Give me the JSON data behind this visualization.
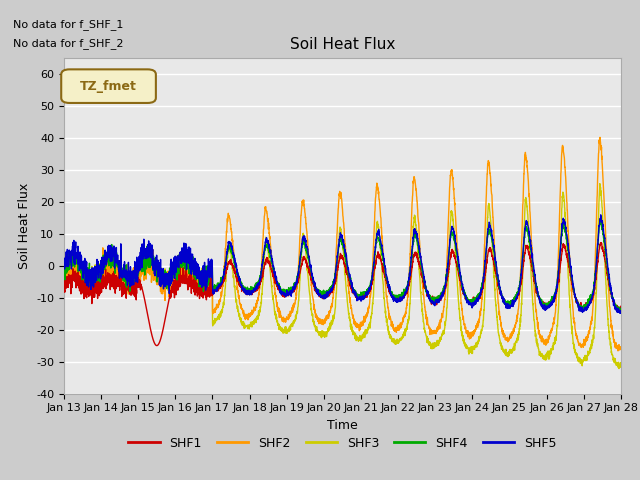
{
  "title": "Soil Heat Flux",
  "ylabel": "Soil Heat Flux",
  "xlabel": "Time",
  "ylim": [
    -40,
    65
  ],
  "xlim": [
    0,
    15
  ],
  "background_color": "#e8e8e8",
  "grid_color": "white",
  "text_no_data_1": "No data for f_SHF_1",
  "text_no_data_2": "No data for f_SHF_2",
  "legend_box_label": "TZ_fmet",
  "legend_box_color": "#f5f0c8",
  "legend_box_border": "#8b6914",
  "series_colors": {
    "SHF1": "#cc0000",
    "SHF2": "#ff9900",
    "SHF3": "#cccc00",
    "SHF4": "#00aa00",
    "SHF5": "#0000cc"
  },
  "xtick_labels": [
    "Jan 13",
    "Jan 14",
    "Jan 15",
    "Jan 16",
    "Jan 17",
    "Jan 18",
    "Jan 19",
    "Jan 20",
    "Jan 21",
    "Jan 22",
    "Jan 23",
    "Jan 24",
    "Jan 25",
    "Jan 26",
    "Jan 27",
    "Jan 28"
  ],
  "xtick_positions": [
    0,
    1,
    2,
    3,
    4,
    5,
    6,
    7,
    8,
    9,
    10,
    11,
    12,
    13,
    14,
    15
  ],
  "ytick_labels": [
    "-40",
    "-30",
    "-20",
    "-10",
    "0",
    "10",
    "20",
    "30",
    "40",
    "50",
    "60"
  ],
  "ytick_values": [
    -40,
    -30,
    -20,
    -10,
    0,
    10,
    20,
    30,
    40,
    50,
    60
  ]
}
